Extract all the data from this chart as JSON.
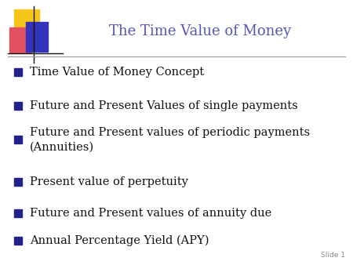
{
  "title": "The Time Value of Money",
  "title_color": "#5555bb",
  "title_fontsize": 13,
  "bullet_items": [
    "Time Value of Money Concept",
    "Future and Present Values of single payments",
    "Future and Present values of periodic payments\n(Annuities)",
    "Present value of perpetuity",
    "Future and Present values of annuity due",
    "Annual Percentage Yield (APY)"
  ],
  "bullet_color": "#111111",
  "bullet_fontsize": 10.5,
  "bullet_marker_color": "#222288",
  "background_color": "#ffffff",
  "slide_label": "Slide 1",
  "slide_label_color": "#888888",
  "slide_label_fontsize": 6.5,
  "line_color": "#999999",
  "logo_yellow_color": "#f5c518",
  "logo_red_color": "#e05060",
  "logo_blue_color": "#3333bb"
}
